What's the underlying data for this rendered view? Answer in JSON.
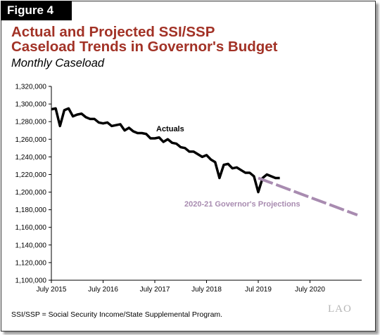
{
  "figure_label": "Figure 4",
  "title_lines": [
    "Actual and Projected SSI/SSP",
    "Caseload Trends  in Governor's Budget"
  ],
  "subtitle": "Monthly Caseload",
  "footnote": "SSI/SSP = Social Security Income/State Supplemental Program.",
  "logo_text": "LAO",
  "colors": {
    "title": "#a23226",
    "actuals": "#000000",
    "projection": "#a88bb0"
  },
  "chart_data": {
    "type": "line",
    "x_start": "2015-07",
    "x_tick_labels": [
      "July 2015",
      "July 2016",
      "July 2017",
      "July 2018",
      "Jul 2019",
      "July 2020"
    ],
    "x_range_months": [
      0,
      72
    ],
    "ylim": [
      1100000,
      1320000
    ],
    "y_ticks": [
      1100000,
      1120000,
      1140000,
      1160000,
      1180000,
      1200000,
      1220000,
      1240000,
      1260000,
      1280000,
      1300000,
      1320000
    ],
    "y_tick_labels": [
      "1,100,000",
      "1,120,000",
      "1,140,000",
      "1,160,000",
      "1,180,000",
      "1,200,000",
      "1,220,000",
      "1,240,000",
      "1,260,000",
      "1,280,000",
      "1,300,000",
      "1,320,000"
    ],
    "grid": false,
    "series": [
      {
        "name": "Actuals",
        "style": "solid",
        "x": [
          "2015-07",
          "2015-08",
          "2015-09",
          "2015-10",
          "2015-11",
          "2015-12",
          "2016-01",
          "2016-02",
          "2016-03",
          "2016-04",
          "2016-05",
          "2016-06",
          "2016-07",
          "2016-08",
          "2016-09",
          "2016-10",
          "2016-11",
          "2016-12",
          "2017-01",
          "2017-02",
          "2017-03",
          "2017-04",
          "2017-05",
          "2017-06",
          "2017-07",
          "2017-08",
          "2017-09",
          "2017-10",
          "2017-11",
          "2017-12",
          "2018-01",
          "2018-02",
          "2018-03",
          "2018-04",
          "2018-05",
          "2018-06",
          "2018-07",
          "2018-08",
          "2018-09",
          "2018-10",
          "2018-11",
          "2018-12",
          "2019-01",
          "2019-02",
          "2019-03",
          "2019-04",
          "2019-05",
          "2019-06",
          "2019-07",
          "2019-08",
          "2019-09",
          "2019-10",
          "2019-11",
          "2019-12"
        ],
        "values": [
          1294000,
          1295000,
          1275000,
          1293000,
          1295000,
          1286000,
          1288000,
          1289000,
          1285000,
          1283000,
          1283000,
          1279000,
          1278000,
          1279000,
          1275000,
          1276000,
          1277000,
          1270000,
          1273000,
          1269000,
          1267000,
          1267000,
          1266000,
          1261000,
          1261000,
          1262000,
          1257000,
          1260000,
          1256000,
          1255000,
          1251000,
          1250000,
          1246000,
          1246000,
          1243000,
          1240000,
          1242000,
          1237000,
          1234000,
          1216000,
          1231000,
          1232000,
          1227000,
          1228000,
          1225000,
          1222000,
          1222000,
          1218000,
          1200000,
          1216000,
          1220000,
          1218000,
          1216000,
          1216000
        ]
      },
      {
        "name": "2020-21 Governor's Projections",
        "style": "dashed",
        "x": [
          "2019-07",
          "2021-06"
        ],
        "values": [
          1216000,
          1174000
        ]
      }
    ],
    "annotations": [
      {
        "text": "Actuals",
        "series": 0
      },
      {
        "text": "2020-21 Governor's Projections",
        "series": 1
      }
    ]
  }
}
